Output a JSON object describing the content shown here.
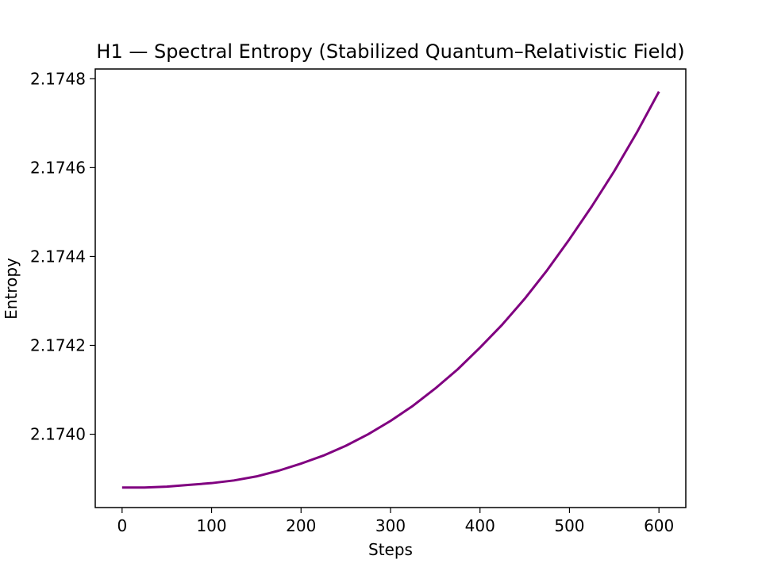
{
  "chart_data": {
    "type": "line",
    "title": "H1 — Spectral Entropy (Stabilized Quantum–Relativistic Field)",
    "xlabel": "Steps",
    "ylabel": "Entropy",
    "xlim": [
      -30,
      630
    ],
    "ylim": [
      2.173835,
      2.174822
    ],
    "xticks": [
      0,
      100,
      200,
      300,
      400,
      500,
      600
    ],
    "xtick_labels": [
      "0",
      "100",
      "200",
      "300",
      "400",
      "500",
      "600"
    ],
    "yticks": [
      2.174,
      2.1742,
      2.1744,
      2.1746,
      2.1748
    ],
    "ytick_labels": [
      "2.1740",
      "2.1742",
      "2.1744",
      "2.1746",
      "2.1748"
    ],
    "grid": false,
    "series": [
      {
        "color": "#800080",
        "x": [
          0,
          25,
          50,
          75,
          100,
          125,
          150,
          175,
          200,
          225,
          250,
          275,
          300,
          325,
          350,
          375,
          400,
          425,
          450,
          475,
          500,
          525,
          550,
          575,
          600
        ],
        "y": [
          2.17388,
          2.17388,
          2.173882,
          2.173886,
          2.17389,
          2.173896,
          2.173905,
          2.173918,
          2.173934,
          2.173952,
          2.173974,
          2.174,
          2.17403,
          2.174064,
          2.174103,
          2.174146,
          2.174195,
          2.174247,
          2.174305,
          2.174369,
          2.174439,
          2.174513,
          2.174592,
          2.174678,
          2.174771
        ]
      }
    ]
  }
}
